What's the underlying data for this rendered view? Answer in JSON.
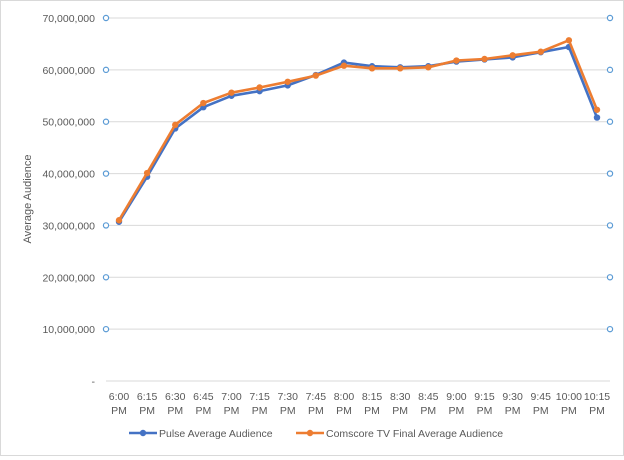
{
  "chart_data": {
    "type": "line",
    "title": "",
    "xlabel": "",
    "ylabel": "Average Audience",
    "ylim": [
      0,
      70000000
    ],
    "y_tick_labels": [
      "-",
      "10,000,000",
      "20,000,000",
      "30,000,000",
      "40,000,000",
      "50,000,000",
      "60,000,000",
      "70,000,000"
    ],
    "categories": [
      {
        "top": "6:00",
        "bottom": "PM"
      },
      {
        "top": "6:15",
        "bottom": "PM"
      },
      {
        "top": "6:30",
        "bottom": "PM"
      },
      {
        "top": "6:45",
        "bottom": "PM"
      },
      {
        "top": "7:00",
        "bottom": "PM"
      },
      {
        "top": "7:15",
        "bottom": "PM"
      },
      {
        "top": "7:30",
        "bottom": "PM"
      },
      {
        "top": "7:45",
        "bottom": "PM"
      },
      {
        "top": "8:00",
        "bottom": "PM"
      },
      {
        "top": "8:15",
        "bottom": "PM"
      },
      {
        "top": "8:30",
        "bottom": "PM"
      },
      {
        "top": "8:45",
        "bottom": "PM"
      },
      {
        "top": "9:00",
        "bottom": "PM"
      },
      {
        "top": "9:15",
        "bottom": "PM"
      },
      {
        "top": "9:30",
        "bottom": "PM"
      },
      {
        "top": "9:45",
        "bottom": "PM"
      },
      {
        "top": "10:00",
        "bottom": "PM"
      },
      {
        "top": "10:15",
        "bottom": "PM"
      }
    ],
    "series": [
      {
        "name": "Pulse Average Audience",
        "color": "#4472c4",
        "values": [
          30700000,
          39400000,
          48700000,
          52800000,
          55000000,
          55900000,
          57000000,
          59000000,
          61400000,
          60700000,
          60500000,
          60700000,
          61600000,
          62000000,
          62400000,
          63400000,
          64400000,
          50800000
        ]
      },
      {
        "name": "Comscore TV Final Average Audience",
        "color": "#ed7d31",
        "values": [
          31000000,
          40100000,
          49400000,
          53600000,
          55600000,
          56600000,
          57700000,
          58900000,
          60800000,
          60300000,
          60300000,
          60500000,
          61800000,
          62100000,
          62800000,
          63500000,
          65700000,
          52300000
        ]
      }
    ],
    "secondary_axis_marker_color": "#5b9bd5",
    "grid": true,
    "legend_position": "bottom"
  }
}
